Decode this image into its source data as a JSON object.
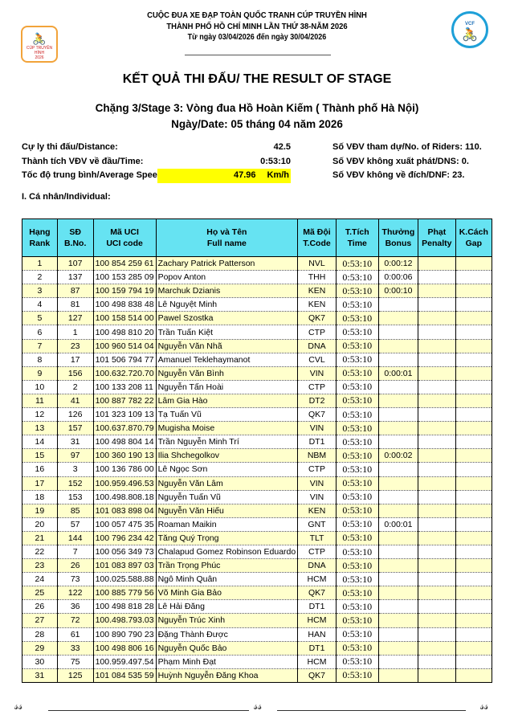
{
  "header": {
    "line1": "CUỘC ĐUA XE ĐẠP TOÀN QUỐC TRANH CÚP TRUYỀN HÌNH",
    "line2": "THÀNH PHỐ HỒ CHÍ MINH LẦN THỨ 38-NĂM 2026",
    "line3": "Từ ngày 03/04/2026 đến ngày 30/04/2026",
    "logo_left": "CÚP TRUYỀN HÌNH 2026 HTV TÔN ĐÔNG Á",
    "logo_right": "VCF"
  },
  "title": "KẾT QUẢ THI ĐẤU/ THE RESULT OF STAGE",
  "stage": "Chặng 3/Stage 3: Vòng đua Hồ Hoàn Kiếm ( Thành phố Hà Nội)",
  "date": "Ngày/Date: 05 tháng 04 năm 2026",
  "info": {
    "distance_label": "Cự ly thi đấu/Distance:",
    "distance": "42.5",
    "time_label": "Thành tích VĐV về đầu/Time:",
    "time": "0:53:10",
    "speed_label": "Tốc độ trung bình/Average Speed",
    "speed": "47.96",
    "speed_unit": "Km/h",
    "riders": "Số VĐV tham dự/No. of Riders: 110.",
    "dns": "Số VĐV không xuất phát/DNS: 0.",
    "dnf": "Số VĐV không về đích/DNF: 23."
  },
  "section": "I. Cá nhân/Individual:",
  "columns": [
    [
      "Hạng",
      "Rank"
    ],
    [
      "SĐ",
      "B.No."
    ],
    [
      "Mã UCI",
      "UCI code"
    ],
    [
      "Họ và Tên",
      "Full name"
    ],
    [
      "Mã Đội",
      "T.Code"
    ],
    [
      "T.Tích",
      "Time"
    ],
    [
      "Thưởng",
      "Bonus"
    ],
    [
      "Phạt",
      "Penalty"
    ],
    [
      "K.Cách",
      "Gap"
    ]
  ],
  "rows": [
    [
      "1",
      "107",
      "100 854 259 61",
      "Zachary Patrick Patterson",
      "NVL",
      "0:53:10",
      "0:00:12",
      "",
      ""
    ],
    [
      "2",
      "137",
      "100 153 285 09",
      "Popov Anton",
      "THH",
      "0:53:10",
      "0:00:06",
      "",
      ""
    ],
    [
      "3",
      "87",
      "100 159 794 19",
      "Marchuk Dzianis",
      "KEN",
      "0:53:10",
      "0:00:10",
      "",
      ""
    ],
    [
      "4",
      "81",
      "100 498 838 48",
      "Lê Nguyệt Minh",
      "KEN",
      "0:53:10",
      "",
      "",
      ""
    ],
    [
      "5",
      "127",
      "100 158 514 00",
      "Pawel Szostka",
      "QK7",
      "0:53:10",
      "",
      "",
      ""
    ],
    [
      "6",
      "1",
      "100 498 810 20",
      "Trần Tuấn Kiệt",
      "CTP",
      "0:53:10",
      "",
      "",
      ""
    ],
    [
      "7",
      "23",
      "100 960 514 04",
      "Nguyễn Văn Nhã",
      "DNA",
      "0:53:10",
      "",
      "",
      ""
    ],
    [
      "8",
      "17",
      "101 506 794 77",
      "Amanuel Teklehaymanot",
      "CVL",
      "0:53:10",
      "",
      "",
      ""
    ],
    [
      "9",
      "156",
      "100.632.720.70",
      "Nguyễn Văn Bình",
      "VIN",
      "0:53:10",
      "0:00:01",
      "",
      ""
    ],
    [
      "10",
      "2",
      "100 133 208 11",
      "Nguyễn Tấn Hoài",
      "CTP",
      "0:53:10",
      "",
      "",
      ""
    ],
    [
      "11",
      "41",
      "100 887 782 22",
      "Lâm Gia Hào",
      "DT2",
      "0:53:10",
      "",
      "",
      ""
    ],
    [
      "12",
      "126",
      "101 323 109 13",
      "Tạ Tuấn Vũ",
      "QK7",
      "0:53:10",
      "",
      "",
      ""
    ],
    [
      "13",
      "157",
      "100.637.870.79",
      "Mugisha Moise",
      "VIN",
      "0:53:10",
      "",
      "",
      ""
    ],
    [
      "14",
      "31",
      "100 498 804 14",
      "Trần Nguyễn Minh Trí",
      "DT1",
      "0:53:10",
      "",
      "",
      ""
    ],
    [
      "15",
      "97",
      "100 360 190 13",
      "Ilia Shchegolkov",
      "NBM",
      "0:53:10",
      "0:00:02",
      "",
      ""
    ],
    [
      "16",
      "3",
      "100 136 786 00",
      "Lê Ngọc Sơn",
      "CTP",
      "0:53:10",
      "",
      "",
      ""
    ],
    [
      "17",
      "152",
      "100.959.496.53",
      "Nguyễn Văn Lâm",
      "VIN",
      "0:53:10",
      "",
      "",
      ""
    ],
    [
      "18",
      "153",
      "100.498.808.18",
      "Nguyễn Tuấn Vũ",
      "VIN",
      "0:53:10",
      "",
      "",
      ""
    ],
    [
      "19",
      "85",
      "101 083 898 04",
      "Nguyễn Văn Hiếu",
      "KEN",
      "0:53:10",
      "",
      "",
      ""
    ],
    [
      "20",
      "57",
      "100 057 475 35",
      "Roaman Maikin",
      "GNT",
      "0:53:10",
      "0:00:01",
      "",
      ""
    ],
    [
      "21",
      "144",
      "100 796 234 42",
      "Tăng Quý Trọng",
      "TLT",
      "0:53:10",
      "",
      "",
      ""
    ],
    [
      "22",
      "7",
      "100 056 349 73",
      "Chalapud Gomez Robinson Eduardo",
      "CTP",
      "0:53:10",
      "",
      "",
      ""
    ],
    [
      "23",
      "26",
      "101 083 897 03",
      "Trần Trọng Phúc",
      "DNA",
      "0:53:10",
      "",
      "",
      ""
    ],
    [
      "24",
      "73",
      "100.025.588.88",
      "Ngô Minh Quân",
      "HCM",
      "0:53:10",
      "",
      "",
      ""
    ],
    [
      "25",
      "122",
      "100 885 779 56",
      "Võ Minh Gia Bảo",
      "QK7",
      "0:53:10",
      "",
      "",
      ""
    ],
    [
      "26",
      "36",
      "100 498 818 28",
      "Lê Hải Đăng",
      "DT1",
      "0:53:10",
      "",
      "",
      ""
    ],
    [
      "27",
      "72",
      "100.498.793.03",
      "Nguyễn Trúc Xinh",
      "HCM",
      "0:53:10",
      "",
      "",
      ""
    ],
    [
      "28",
      "61",
      "100 890 790 23",
      "Đặng Thành Được",
      "HAN",
      "0:53:10",
      "",
      "",
      ""
    ],
    [
      "29",
      "33",
      "100 498 806 16",
      "Nguyễn Quốc Bảo",
      "DT1",
      "0:53:10",
      "",
      "",
      ""
    ],
    [
      "30",
      "75",
      "100.959.497.54",
      "Phạm Minh Đạt",
      "HCM",
      "0:53:10",
      "",
      "",
      ""
    ],
    [
      "31",
      "125",
      "101 084 535 59",
      "Huỳnh Nguyễn Đăng Khoa",
      "QK7",
      "0:53:10",
      "",
      "",
      ""
    ]
  ],
  "colors": {
    "header_bg": "#66e3f2",
    "odd_row": "#ffffcc",
    "highlight": "#ffff00"
  }
}
